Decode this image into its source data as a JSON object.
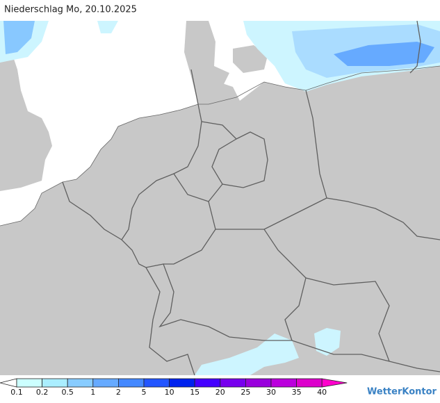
{
  "title": "Niederschlag Mo, 20.10.2025",
  "legend": {
    "labels": [
      "0.1",
      "0.2",
      "0.5",
      "1",
      "2",
      "5",
      "10",
      "15",
      "20",
      "25",
      "30",
      "35",
      "40"
    ],
    "low_color": "#ffffff",
    "colors": [
      "#ccffff",
      "#aaeeff",
      "#88ccff",
      "#66aaff",
      "#4488ff",
      "#2255ff",
      "#0022ee",
      "#4400ff",
      "#7700ee",
      "#9900dd",
      "#bb00dd",
      "#dd00cc"
    ],
    "high_color": "#ff00cc"
  },
  "brand": "WetterKontor"
}
